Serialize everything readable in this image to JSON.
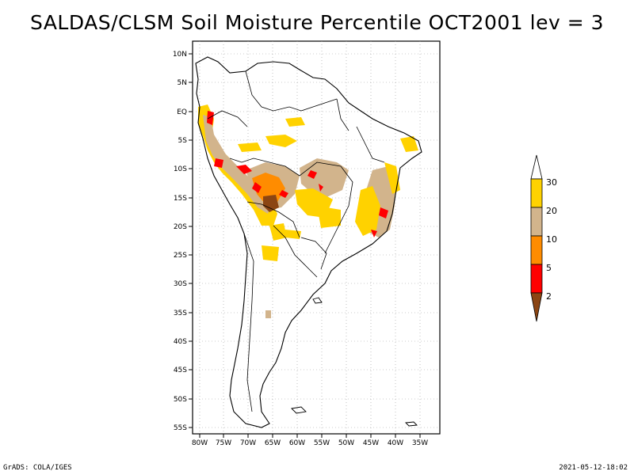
{
  "title": "SALDAS/CLSM Soil Moisture Percentile OCT2001 lev = 3",
  "footer": {
    "left": "GrADS: COLA/IGES",
    "right": "2021-05-12-18:02"
  },
  "map": {
    "lat_labels": [
      "10N",
      "5N",
      "EQ",
      "5S",
      "10S",
      "15S",
      "20S",
      "25S",
      "30S",
      "35S",
      "40S",
      "45S",
      "50S",
      "55S"
    ],
    "lon_labels": [
      "80W",
      "75W",
      "70W",
      "65W",
      "60W",
      "55W",
      "50W",
      "45W",
      "40W",
      "35W"
    ]
  },
  "legend": {
    "labels": [
      "30",
      "20",
      "10",
      "5",
      "2"
    ],
    "colors": [
      "#ffffff",
      "#ffd200",
      "#d2b48c",
      "#ff8c00",
      "#ff0000",
      "#8b4513"
    ]
  }
}
